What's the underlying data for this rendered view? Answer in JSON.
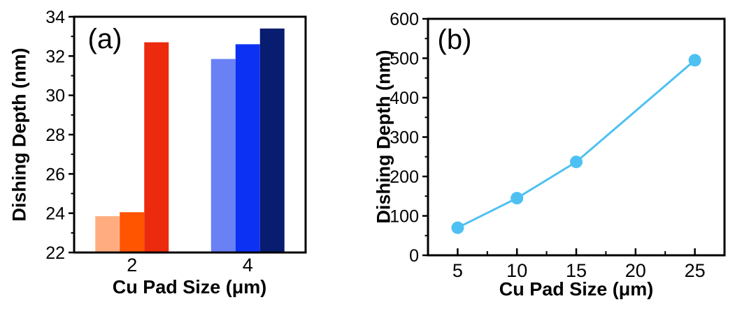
{
  "figure": {
    "background": "#ffffff",
    "text_color": "#000000",
    "axis_color": "#000000"
  },
  "chart_data": [
    {
      "type": "bar",
      "panel_label": "(a)",
      "xlabel": "Cu Pad Size (μm)",
      "ylabel": "Dishing Depth (nm)",
      "ylim": [
        22,
        34
      ],
      "yticks": [
        22,
        24,
        26,
        28,
        30,
        32,
        34
      ],
      "minor_yticks": [
        23,
        25,
        27,
        29,
        31,
        33
      ],
      "grid": false,
      "legend": "none",
      "categories": [
        "2",
        "4"
      ],
      "groups": [
        {
          "category": "2",
          "bars": [
            {
              "value": 23.85,
              "color": "#FFAD80"
            },
            {
              "value": 24.05,
              "color": "#FF5400"
            },
            {
              "value": 32.7,
              "color": "#EC2A0D"
            }
          ]
        },
        {
          "category": "4",
          "bars": [
            {
              "value": 31.85,
              "color": "#6A81F5"
            },
            {
              "value": 32.6,
              "color": "#0D31F2"
            },
            {
              "value": 33.4,
              "color": "#081C70"
            }
          ]
        }
      ]
    },
    {
      "type": "line",
      "panel_label": "(b)",
      "xlabel": "Cu Pad Size (μm)",
      "ylabel": "Dishing Depth (nm)",
      "xlim": [
        2.5,
        27.5
      ],
      "ylim": [
        0,
        600
      ],
      "xticks": [
        5,
        10,
        15,
        20,
        25
      ],
      "minor_xticks": [
        7.5,
        12.5,
        17.5,
        22.5
      ],
      "yticks": [
        0,
        100,
        200,
        300,
        400,
        500,
        600
      ],
      "minor_yticks": [
        50,
        150,
        250,
        350,
        450,
        550
      ],
      "grid": false,
      "legend": "none",
      "x": [
        5,
        10,
        15,
        25
      ],
      "y": [
        70,
        145,
        237,
        495
      ],
      "line_color": "#4EC1F2",
      "marker": "circle",
      "marker_size": 9
    }
  ]
}
